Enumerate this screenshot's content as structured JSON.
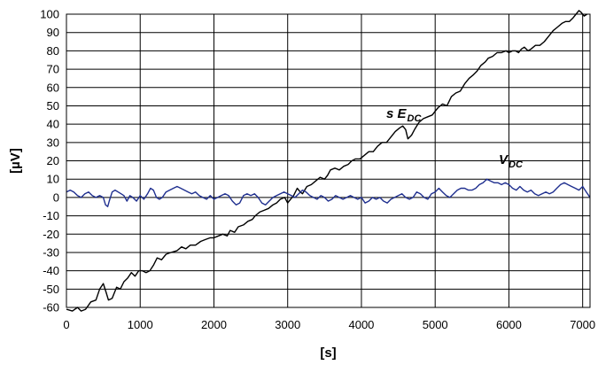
{
  "chart_data": {
    "type": "line",
    "title": "",
    "xlabel": "[s]",
    "ylabel": "[µV]",
    "xlim": [
      0,
      7100
    ],
    "ylim": [
      -60,
      100
    ],
    "xticks": [
      0,
      1000,
      2000,
      3000,
      4000,
      5000,
      6000,
      7000
    ],
    "yticks": [
      -60,
      -50,
      -40,
      -30,
      -20,
      -10,
      0,
      10,
      20,
      30,
      40,
      50,
      60,
      70,
      80,
      90,
      100
    ],
    "grid": true,
    "legend": "none",
    "series": [
      {
        "name": "s E DC",
        "label_main": "s E",
        "label_sub": "DC",
        "color": "#000000",
        "points": [
          [
            0,
            -61
          ],
          [
            80,
            -62
          ],
          [
            150,
            -60
          ],
          [
            200,
            -62
          ],
          [
            260,
            -61
          ],
          [
            330,
            -57
          ],
          [
            400,
            -56
          ],
          [
            450,
            -50
          ],
          [
            500,
            -47
          ],
          [
            540,
            -52
          ],
          [
            570,
            -56
          ],
          [
            620,
            -55
          ],
          [
            680,
            -49
          ],
          [
            730,
            -50
          ],
          [
            780,
            -46
          ],
          [
            830,
            -44
          ],
          [
            880,
            -41
          ],
          [
            930,
            -43
          ],
          [
            980,
            -40
          ],
          [
            1030,
            -40
          ],
          [
            1080,
            -41
          ],
          [
            1130,
            -40
          ],
          [
            1180,
            -37
          ],
          [
            1230,
            -33
          ],
          [
            1290,
            -34
          ],
          [
            1350,
            -31
          ],
          [
            1420,
            -30
          ],
          [
            1500,
            -29
          ],
          [
            1560,
            -27
          ],
          [
            1620,
            -28
          ],
          [
            1680,
            -26
          ],
          [
            1750,
            -26
          ],
          [
            1820,
            -24
          ],
          [
            1880,
            -23
          ],
          [
            1950,
            -22
          ],
          [
            2000,
            -22
          ],
          [
            2060,
            -21
          ],
          [
            2120,
            -20
          ],
          [
            2180,
            -21
          ],
          [
            2220,
            -18
          ],
          [
            2280,
            -19
          ],
          [
            2330,
            -16
          ],
          [
            2400,
            -15
          ],
          [
            2460,
            -13
          ],
          [
            2520,
            -12
          ],
          [
            2560,
            -10
          ],
          [
            2620,
            -8
          ],
          [
            2680,
            -7
          ],
          [
            2740,
            -6
          ],
          [
            2800,
            -4
          ],
          [
            2850,
            -3
          ],
          [
            2900,
            -1
          ],
          [
            2960,
            0
          ],
          [
            3000,
            -3
          ],
          [
            3040,
            -1
          ],
          [
            3080,
            1
          ],
          [
            3130,
            5
          ],
          [
            3170,
            3
          ],
          [
            3200,
            2
          ],
          [
            3260,
            6
          ],
          [
            3320,
            7
          ],
          [
            3380,
            9
          ],
          [
            3440,
            11
          ],
          [
            3500,
            10
          ],
          [
            3540,
            12
          ],
          [
            3580,
            15
          ],
          [
            3640,
            16
          ],
          [
            3700,
            15
          ],
          [
            3760,
            17
          ],
          [
            3820,
            18
          ],
          [
            3870,
            20
          ],
          [
            3920,
            21
          ],
          [
            3980,
            21
          ],
          [
            4040,
            23
          ],
          [
            4100,
            25
          ],
          [
            4160,
            25
          ],
          [
            4220,
            28
          ],
          [
            4280,
            30
          ],
          [
            4340,
            30
          ],
          [
            4400,
            33
          ],
          [
            4460,
            36
          ],
          [
            4520,
            38
          ],
          [
            4560,
            39
          ],
          [
            4600,
            37
          ],
          [
            4630,
            32
          ],
          [
            4680,
            34
          ],
          [
            4720,
            37
          ],
          [
            4780,
            41
          ],
          [
            4840,
            43
          ],
          [
            4900,
            44
          ],
          [
            4960,
            45
          ],
          [
            5000,
            47
          ],
          [
            5040,
            49
          ],
          [
            5100,
            51
          ],
          [
            5160,
            50
          ],
          [
            5220,
            55
          ],
          [
            5280,
            57
          ],
          [
            5340,
            58
          ],
          [
            5400,
            62
          ],
          [
            5460,
            65
          ],
          [
            5520,
            67
          ],
          [
            5570,
            69
          ],
          [
            5620,
            72
          ],
          [
            5680,
            74
          ],
          [
            5720,
            76
          ],
          [
            5780,
            77
          ],
          [
            5840,
            79
          ],
          [
            5900,
            79
          ],
          [
            5960,
            80
          ],
          [
            6000,
            79
          ],
          [
            6050,
            80
          ],
          [
            6090,
            80
          ],
          [
            6130,
            79
          ],
          [
            6170,
            81
          ],
          [
            6210,
            82
          ],
          [
            6260,
            80
          ],
          [
            6300,
            81
          ],
          [
            6360,
            83
          ],
          [
            6420,
            83
          ],
          [
            6480,
            85
          ],
          [
            6540,
            88
          ],
          [
            6600,
            91
          ],
          [
            6660,
            93
          ],
          [
            6720,
            95
          ],
          [
            6770,
            96
          ],
          [
            6820,
            96
          ],
          [
            6870,
            98
          ],
          [
            6910,
            100
          ],
          [
            6950,
            102
          ],
          [
            6980,
            101
          ],
          [
            7020,
            99
          ],
          [
            7060,
            100
          ]
        ]
      },
      {
        "name": "V DC",
        "label_main": "V",
        "label_sub": "DC",
        "color": "#1f2f8f",
        "points": [
          [
            0,
            3
          ],
          [
            50,
            4
          ],
          [
            100,
            3
          ],
          [
            150,
            1
          ],
          [
            200,
            0
          ],
          [
            250,
            2
          ],
          [
            300,
            3
          ],
          [
            350,
            1
          ],
          [
            400,
            0
          ],
          [
            450,
            1
          ],
          [
            500,
            0
          ],
          [
            530,
            -4
          ],
          [
            560,
            -5
          ],
          [
            580,
            -2
          ],
          [
            620,
            3
          ],
          [
            660,
            4
          ],
          [
            700,
            3
          ],
          [
            740,
            2
          ],
          [
            780,
            1
          ],
          [
            820,
            -2
          ],
          [
            860,
            1
          ],
          [
            900,
            0
          ],
          [
            950,
            -2
          ],
          [
            1000,
            1
          ],
          [
            1050,
            -1
          ],
          [
            1100,
            2
          ],
          [
            1140,
            5
          ],
          [
            1180,
            4
          ],
          [
            1220,
            0
          ],
          [
            1260,
            -1
          ],
          [
            1300,
            0
          ],
          [
            1350,
            3
          ],
          [
            1400,
            4
          ],
          [
            1450,
            5
          ],
          [
            1500,
            6
          ],
          [
            1550,
            5
          ],
          [
            1600,
            4
          ],
          [
            1650,
            3
          ],
          [
            1700,
            2
          ],
          [
            1750,
            3
          ],
          [
            1800,
            1
          ],
          [
            1850,
            0
          ],
          [
            1900,
            -1
          ],
          [
            1950,
            1
          ],
          [
            2000,
            -1
          ],
          [
            2050,
            0
          ],
          [
            2100,
            1
          ],
          [
            2150,
            2
          ],
          [
            2200,
            1
          ],
          [
            2250,
            -2
          ],
          [
            2300,
            -4
          ],
          [
            2350,
            -3
          ],
          [
            2400,
            1
          ],
          [
            2450,
            2
          ],
          [
            2500,
            1
          ],
          [
            2550,
            2
          ],
          [
            2600,
            0
          ],
          [
            2650,
            -3
          ],
          [
            2700,
            -4
          ],
          [
            2750,
            -2
          ],
          [
            2800,
            0
          ],
          [
            2850,
            1
          ],
          [
            2900,
            2
          ],
          [
            2950,
            3
          ],
          [
            3000,
            2
          ],
          [
            3050,
            1
          ],
          [
            3100,
            0
          ],
          [
            3150,
            2
          ],
          [
            3200,
            4
          ],
          [
            3250,
            3
          ],
          [
            3300,
            1
          ],
          [
            3350,
            0
          ],
          [
            3400,
            -1
          ],
          [
            3450,
            1
          ],
          [
            3500,
            0
          ],
          [
            3550,
            -2
          ],
          [
            3600,
            -1
          ],
          [
            3650,
            1
          ],
          [
            3700,
            0
          ],
          [
            3750,
            -1
          ],
          [
            3800,
            0
          ],
          [
            3850,
            1
          ],
          [
            3900,
            0
          ],
          [
            3950,
            -1
          ],
          [
            4000,
            0
          ],
          [
            4050,
            -3
          ],
          [
            4100,
            -2
          ],
          [
            4150,
            0
          ],
          [
            4200,
            -1
          ],
          [
            4250,
            0
          ],
          [
            4300,
            -2
          ],
          [
            4350,
            -3
          ],
          [
            4400,
            -1
          ],
          [
            4450,
            0
          ],
          [
            4500,
            1
          ],
          [
            4550,
            2
          ],
          [
            4600,
            0
          ],
          [
            4650,
            -1
          ],
          [
            4700,
            0
          ],
          [
            4750,
            3
          ],
          [
            4800,
            2
          ],
          [
            4850,
            0
          ],
          [
            4900,
            -1
          ],
          [
            4950,
            2
          ],
          [
            5000,
            3
          ],
          [
            5050,
            5
          ],
          [
            5100,
            3
          ],
          [
            5150,
            1
          ],
          [
            5200,
            0
          ],
          [
            5250,
            2
          ],
          [
            5300,
            4
          ],
          [
            5350,
            5
          ],
          [
            5400,
            5
          ],
          [
            5450,
            4
          ],
          [
            5500,
            4
          ],
          [
            5550,
            5
          ],
          [
            5600,
            7
          ],
          [
            5650,
            8
          ],
          [
            5700,
            10
          ],
          [
            5750,
            9
          ],
          [
            5800,
            8
          ],
          [
            5850,
            8
          ],
          [
            5900,
            7
          ],
          [
            5950,
            8
          ],
          [
            6000,
            7
          ],
          [
            6050,
            5
          ],
          [
            6100,
            4
          ],
          [
            6150,
            6
          ],
          [
            6200,
            4
          ],
          [
            6250,
            3
          ],
          [
            6300,
            4
          ],
          [
            6350,
            2
          ],
          [
            6400,
            1
          ],
          [
            6450,
            2
          ],
          [
            6500,
            3
          ],
          [
            6550,
            2
          ],
          [
            6600,
            3
          ],
          [
            6650,
            5
          ],
          [
            6700,
            7
          ],
          [
            6750,
            8
          ],
          [
            6800,
            7
          ],
          [
            6850,
            6
          ],
          [
            6900,
            5
          ],
          [
            6950,
            4
          ],
          [
            7000,
            6
          ],
          [
            7050,
            3
          ],
          [
            7100,
            0
          ]
        ]
      }
    ]
  }
}
